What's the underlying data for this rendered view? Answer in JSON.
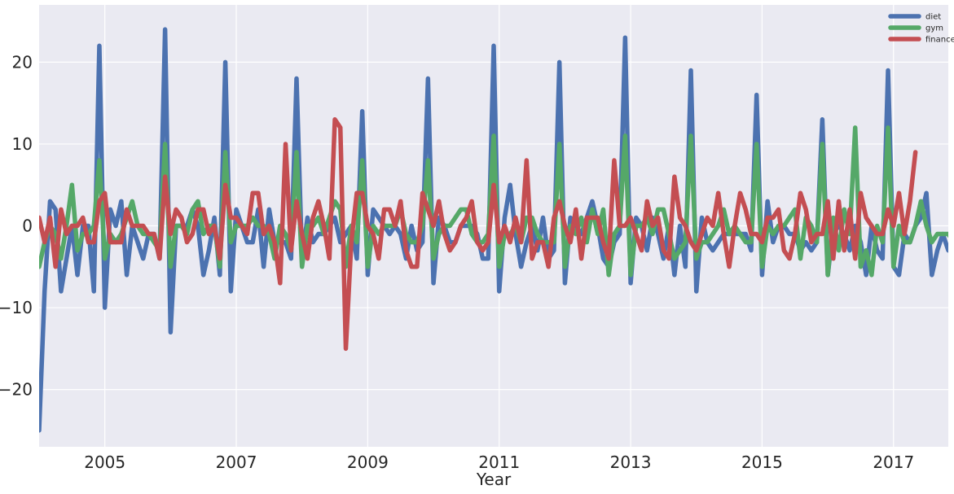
{
  "chart_data": {
    "type": "line",
    "xlabel": "Year",
    "ylabel": "",
    "xlim": [
      "2004-01",
      "2017-11"
    ],
    "ylim": [
      -27,
      27
    ],
    "x_ticks": [
      "2005",
      "2007",
      "2009",
      "2011",
      "2013",
      "2015",
      "2017"
    ],
    "y_ticks": [
      -20,
      -10,
      0,
      10,
      20
    ],
    "grid": true,
    "legend": "top-right",
    "background": "#eaeaf2",
    "start": "2004-01",
    "series": [
      {
        "name": "diet",
        "color": "#4c72b0",
        "values": [
          -25,
          -8,
          3,
          2,
          -8,
          -4,
          0,
          -6,
          0,
          0,
          -8,
          22,
          -10,
          2,
          0,
          3,
          -6,
          0,
          -2,
          -4,
          -1,
          -1,
          -4,
          24,
          -13,
          0,
          0,
          0,
          2,
          0,
          -6,
          -3,
          1,
          -6,
          20,
          -8,
          2,
          0,
          -2,
          -2,
          2,
          -5,
          2,
          -2,
          -2,
          -2,
          -4,
          18,
          -4,
          1,
          -2,
          -1,
          -1,
          0,
          1,
          -2,
          -1,
          0,
          -4,
          14,
          -6,
          2,
          1,
          0,
          -1,
          0,
          -1,
          -4,
          0,
          -3,
          -2,
          18,
          -7,
          1,
          0,
          -2,
          -2,
          0,
          0,
          0,
          -1,
          -4,
          -4,
          22,
          -8,
          1,
          5,
          -1,
          -5,
          -2,
          0,
          -3,
          1,
          -4,
          -3,
          20,
          -7,
          1,
          0,
          -1,
          1,
          3,
          0,
          -4,
          -5,
          -2,
          -1,
          23,
          -7,
          1,
          0,
          -3,
          1,
          -1,
          -4,
          0,
          -6,
          0,
          -5,
          19,
          -8,
          1,
          -2,
          -3,
          -2,
          -1,
          -1,
          -1,
          -1,
          -1,
          -3,
          16,
          -6,
          3,
          -2,
          0,
          0,
          -1,
          -1,
          -3,
          -2,
          -3,
          -2,
          13,
          -6,
          0,
          0,
          -1,
          -3,
          0,
          -2,
          -6,
          0,
          -3,
          -4,
          19,
          -5,
          -6,
          -1,
          -2,
          0,
          1,
          4,
          -6,
          -3,
          -1,
          -3,
          -2
        ]
      },
      {
        "name": "gym",
        "color": "#55a868",
        "values": [
          -5,
          -2,
          0,
          -1,
          -4,
          0,
          5,
          -3,
          -1,
          -1,
          0,
          8,
          -4,
          -1,
          -2,
          -1,
          1,
          3,
          0,
          -1,
          -1,
          -2,
          -3,
          10,
          -5,
          0,
          0,
          -1,
          2,
          3,
          -1,
          0,
          0,
          -5,
          9,
          -2,
          0,
          0,
          0,
          1,
          0,
          0,
          -1,
          -4,
          0,
          -1,
          -3,
          9,
          -5,
          0,
          0,
          1,
          -1,
          1,
          3,
          2,
          -5,
          0,
          -2,
          8,
          -5,
          0,
          -1,
          0,
          0,
          0,
          2,
          -1,
          -2,
          -2,
          0,
          8,
          -4,
          -1,
          0,
          0,
          1,
          2,
          2,
          -1,
          -2,
          -2,
          -1,
          11,
          -5,
          -1,
          -1,
          0,
          -2,
          1,
          1,
          -1,
          -2,
          -2,
          -2,
          10,
          -5,
          0,
          -1,
          1,
          -2,
          2,
          -1,
          2,
          -6,
          -1,
          0,
          11,
          -6,
          0,
          0,
          1,
          -1,
          2,
          2,
          -1,
          -4,
          -3,
          -2,
          11,
          -4,
          -2,
          -2,
          -1,
          0,
          2,
          -1,
          0,
          -1,
          -2,
          -2,
          10,
          -5,
          0,
          -1,
          0,
          0,
          1,
          2,
          -4,
          1,
          0,
          -2,
          10,
          -6,
          1,
          -3,
          2,
          -1,
          12,
          -5,
          -3,
          -6,
          0,
          -2,
          12,
          -5,
          0,
          -2,
          -2,
          0,
          3,
          0,
          -2,
          -1,
          -1,
          -1,
          -2
        ]
      },
      {
        "name": "finance",
        "color": "#c44e52",
        "values": [
          1,
          -2,
          1,
          -5,
          2,
          -1,
          0,
          0,
          1,
          -2,
          -2,
          3,
          4,
          -2,
          -2,
          -2,
          2,
          0,
          0,
          0,
          -1,
          -1,
          -4,
          6,
          -1,
          2,
          1,
          -2,
          -1,
          2,
          2,
          -1,
          0,
          -4,
          5,
          1,
          1,
          0,
          -1,
          4,
          4,
          -1,
          0,
          -2,
          -7,
          10,
          -3,
          3,
          -1,
          -4,
          1,
          3,
          0,
          -4,
          13,
          12,
          -15,
          -2,
          4,
          4,
          0,
          -1,
          -4,
          2,
          2,
          0,
          3,
          -3,
          -5,
          -5,
          4,
          2,
          0,
          3,
          -1,
          -3,
          -2,
          0,
          1,
          3,
          -2,
          -3,
          -2,
          5,
          -2,
          0,
          -2,
          1,
          -2,
          8,
          -4,
          -2,
          -2,
          -5,
          1,
          3,
          0,
          -2,
          2,
          -4,
          1,
          1,
          1,
          -2,
          -4,
          8,
          0,
          0,
          1,
          -1,
          -3,
          3,
          0,
          1,
          -3,
          -4,
          6,
          1,
          0,
          -2,
          -3,
          -1,
          1,
          0,
          4,
          -1,
          -5,
          0,
          4,
          2,
          -1,
          -1,
          -2,
          1,
          1,
          2,
          -3,
          -4,
          -1,
          4,
          2,
          -2,
          -1,
          -1,
          3,
          -4,
          3,
          -3,
          2,
          -4,
          4,
          1,
          0,
          -1,
          -1,
          2,
          0,
          4,
          -1,
          3,
          9
        ]
      }
    ]
  }
}
